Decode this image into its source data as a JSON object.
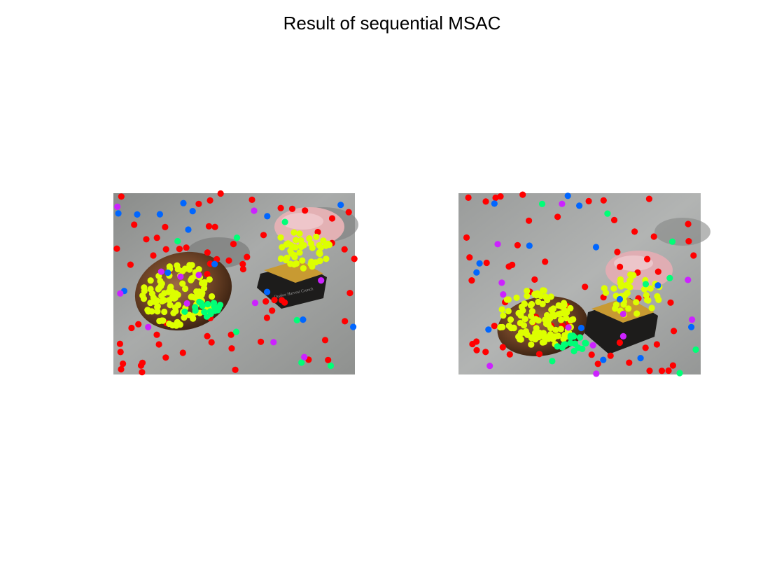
{
  "figure": {
    "title": "Result of sequential MSAC"
  },
  "colors": {
    "outlier": "#ff0000",
    "model_1": "#ddff00",
    "model_2": "#00ff77",
    "model_3": "#0066ff",
    "model_4": "#cc22ff"
  },
  "panels": [
    {
      "name": "left-image",
      "label": ""
    },
    {
      "name": "right-image",
      "label": ""
    }
  ],
  "scene": {
    "box_label": "Quaker Harvest Crunch"
  }
}
